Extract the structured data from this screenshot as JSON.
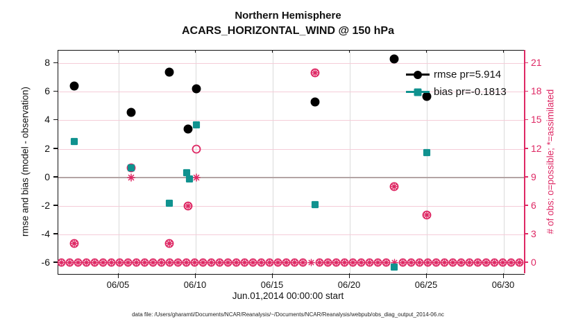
{
  "title": {
    "line1": "Northern Hemisphere",
    "line2": "ACARS_HORIZONTAL_WIND @ 150 hPa"
  },
  "footer_text": "data file: /Users/gharamti/Documents/NCAR/Reanalysis/~/Documents/NCAR/Reanalysis/webpub/obs_diag_output_2014-06.nc",
  "colors": {
    "rmse": "#000000",
    "bias": "#10928f",
    "obs": "#de2864",
    "grid_h": "#f5ccd8",
    "grid_v": "#dadada",
    "zero_line": "#b3a4a4",
    "axis_black": "#111111"
  },
  "chart_data": {
    "type": "scatter",
    "title": "Northern Hemisphere",
    "subtitle": "ACARS_HORIZONTAL_WIND @ 150 hPa",
    "xlabel": "Jun.01,2014 00:00:00 start",
    "ylabel_left": "rmse and bias (model - observation)",
    "ylabel_right": "# of obs: o=possible; *=assimilated",
    "grid": true,
    "x_ticks": [
      {
        "day": 5,
        "label": "06/05"
      },
      {
        "day": 10,
        "label": "06/10"
      },
      {
        "day": 15,
        "label": "06/15"
      },
      {
        "day": 20,
        "label": "06/20"
      },
      {
        "day": 25,
        "label": "06/25"
      },
      {
        "day": 30,
        "label": "06/30"
      }
    ],
    "xlim_days": [
      1.08,
      31.35
    ],
    "yticks_left": [
      8,
      6,
      4,
      2,
      0,
      -2,
      -4,
      -6
    ],
    "ylim_left": [
      -6.8,
      8.9
    ],
    "yticks_right": [
      21,
      18,
      15,
      12,
      9,
      6,
      3,
      0
    ],
    "ylim_right": [
      -1.2,
      22.35
    ],
    "legend": [
      {
        "label": "rmse pr=5.914",
        "marker": "filled-circle",
        "series": "rmse"
      },
      {
        "label": "bias pr=-0.1813",
        "marker": "filled-square",
        "series": "bias"
      }
    ],
    "series": {
      "rmse": {
        "axis": "left",
        "marker": "filled-circle",
        "color": "#000000",
        "points": [
          [
            2.1,
            6.4
          ],
          [
            5.8,
            4.55
          ],
          [
            8.3,
            7.4
          ],
          [
            9.5,
            3.4
          ],
          [
            10.05,
            6.2
          ],
          [
            17.75,
            5.3
          ],
          [
            22.9,
            8.3
          ],
          [
            25.0,
            5.7
          ]
        ]
      },
      "bias": {
        "axis": "left",
        "marker": "filled-square",
        "color": "#10928f",
        "points": [
          [
            2.1,
            2.5
          ],
          [
            5.8,
            0.65
          ],
          [
            8.3,
            -1.85
          ],
          [
            9.4,
            0.3
          ],
          [
            9.6,
            -0.1
          ],
          [
            10.05,
            3.7
          ],
          [
            17.75,
            -1.9
          ],
          [
            22.9,
            -6.3
          ],
          [
            25.0,
            1.75
          ]
        ]
      },
      "possible_obs": {
        "axis": "right",
        "marker": "open-circle",
        "color": "#de2864",
        "points": [
          [
            2.1,
            2
          ],
          [
            5.8,
            10
          ],
          [
            8.3,
            2
          ],
          [
            9.5,
            6
          ],
          [
            10.05,
            12
          ],
          [
            17.75,
            20
          ],
          [
            22.9,
            8
          ],
          [
            25.0,
            5
          ]
        ]
      },
      "assimilated_obs": {
        "axis": "right",
        "marker": "asterisk",
        "color": "#de2864",
        "points": [
          [
            2.1,
            2
          ],
          [
            5.8,
            9
          ],
          [
            8.3,
            2
          ],
          [
            9.5,
            6
          ],
          [
            10.05,
            9
          ],
          [
            17.75,
            20
          ],
          [
            22.9,
            8
          ],
          [
            25.0,
            5
          ]
        ]
      },
      "zero_obs_row": {
        "axis": "right",
        "marker": "circle-asterisk",
        "color": "#de2864",
        "value": 0,
        "day_start": 1.3,
        "day_end": 31.15,
        "day_step": 0.54,
        "asterisk_only_days": [
          17.75,
          22.9
        ]
      }
    }
  }
}
